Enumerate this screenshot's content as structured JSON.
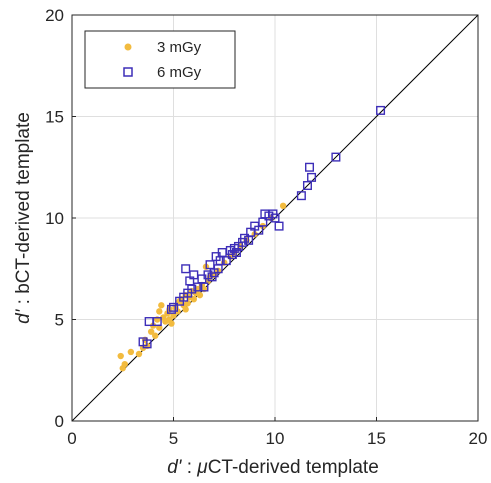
{
  "chart_data": {
    "type": "scatter",
    "xlim": [
      0,
      20
    ],
    "ylim": [
      0,
      20
    ],
    "xticks": [
      0,
      5,
      10,
      15,
      20
    ],
    "yticks": [
      0,
      5,
      10,
      15,
      20
    ],
    "xlabel": {
      "prefix": "d'",
      "sep": " : ",
      "mu": "μ",
      "rest": "CT-derived template"
    },
    "ylabel": {
      "prefix": "d'",
      "sep": " : ",
      "rest": "bCT-derived template"
    },
    "grid": true,
    "legend_placement": "top-left",
    "reference_line": {
      "from": [
        0,
        0
      ],
      "to": [
        20,
        20
      ],
      "color": "#000000"
    },
    "series": [
      {
        "name": "3 mGy",
        "marker": "filled-circle",
        "color": "#F2BB3F",
        "points": [
          [
            2.4,
            3.2
          ],
          [
            2.5,
            2.6
          ],
          [
            2.6,
            2.8
          ],
          [
            2.9,
            3.4
          ],
          [
            3.3,
            3.3
          ],
          [
            3.5,
            3.6
          ],
          [
            3.6,
            4.0
          ],
          [
            3.7,
            3.7
          ],
          [
            3.9,
            4.4
          ],
          [
            4.0,
            4.7
          ],
          [
            4.1,
            4.2
          ],
          [
            4.2,
            5.0
          ],
          [
            4.3,
            4.6
          ],
          [
            4.3,
            5.4
          ],
          [
            4.4,
            5.7
          ],
          [
            4.5,
            5.1
          ],
          [
            4.6,
            4.9
          ],
          [
            4.7,
            5.3
          ],
          [
            4.8,
            5.0
          ],
          [
            4.8,
            5.5
          ],
          [
            4.9,
            4.8
          ],
          [
            5.0,
            5.2
          ],
          [
            5.1,
            5.6
          ],
          [
            5.2,
            5.4
          ],
          [
            5.3,
            5.9
          ],
          [
            5.4,
            6.0
          ],
          [
            5.5,
            5.7
          ],
          [
            5.6,
            5.5
          ],
          [
            5.6,
            6.2
          ],
          [
            5.7,
            5.8
          ],
          [
            5.8,
            6.1
          ],
          [
            5.9,
            6.4
          ],
          [
            6.0,
            6.0
          ],
          [
            6.1,
            6.3
          ],
          [
            6.2,
            6.5
          ],
          [
            6.3,
            6.2
          ],
          [
            6.4,
            6.7
          ],
          [
            6.5,
            6.5
          ],
          [
            6.6,
            7.6
          ],
          [
            6.7,
            6.9
          ],
          [
            6.8,
            7.1
          ],
          [
            7.0,
            7.2
          ],
          [
            7.2,
            7.4
          ],
          [
            7.5,
            7.8
          ],
          [
            7.8,
            8.1
          ],
          [
            8.0,
            8.3
          ],
          [
            8.3,
            8.6
          ],
          [
            8.6,
            8.9
          ],
          [
            9.0,
            9.2
          ],
          [
            9.4,
            9.6
          ],
          [
            9.8,
            10.0
          ],
          [
            10.4,
            10.6
          ]
        ]
      },
      {
        "name": "6 mGy",
        "marker": "open-square",
        "color": "#3D2EB8",
        "points": [
          [
            3.5,
            3.9
          ],
          [
            3.7,
            3.8
          ],
          [
            3.8,
            4.9
          ],
          [
            4.2,
            4.9
          ],
          [
            4.9,
            5.5
          ],
          [
            5.0,
            5.6
          ],
          [
            5.3,
            5.9
          ],
          [
            5.5,
            6.1
          ],
          [
            5.6,
            7.5
          ],
          [
            5.7,
            6.3
          ],
          [
            5.8,
            6.9
          ],
          [
            5.9,
            6.5
          ],
          [
            6.0,
            7.2
          ],
          [
            6.2,
            6.6
          ],
          [
            6.4,
            7.0
          ],
          [
            6.5,
            6.6
          ],
          [
            6.7,
            7.2
          ],
          [
            6.8,
            7.7
          ],
          [
            6.9,
            7.1
          ],
          [
            7.0,
            7.3
          ],
          [
            7.1,
            8.1
          ],
          [
            7.2,
            7.5
          ],
          [
            7.3,
            7.9
          ],
          [
            7.4,
            8.3
          ],
          [
            7.6,
            7.9
          ],
          [
            7.8,
            8.4
          ],
          [
            7.9,
            8.2
          ],
          [
            8.0,
            8.5
          ],
          [
            8.1,
            8.3
          ],
          [
            8.2,
            8.6
          ],
          [
            8.4,
            8.8
          ],
          [
            8.5,
            9.0
          ],
          [
            8.7,
            8.9
          ],
          [
            8.8,
            9.3
          ],
          [
            9.0,
            9.6
          ],
          [
            9.2,
            9.4
          ],
          [
            9.4,
            9.8
          ],
          [
            9.5,
            10.2
          ],
          [
            9.7,
            10.1
          ],
          [
            9.9,
            10.2
          ],
          [
            10.0,
            10.0
          ],
          [
            10.2,
            9.6
          ],
          [
            11.3,
            11.1
          ],
          [
            11.6,
            11.6
          ],
          [
            11.8,
            12.0
          ],
          [
            11.7,
            12.5
          ],
          [
            13.0,
            13.0
          ],
          [
            15.2,
            15.3
          ]
        ]
      }
    ]
  }
}
